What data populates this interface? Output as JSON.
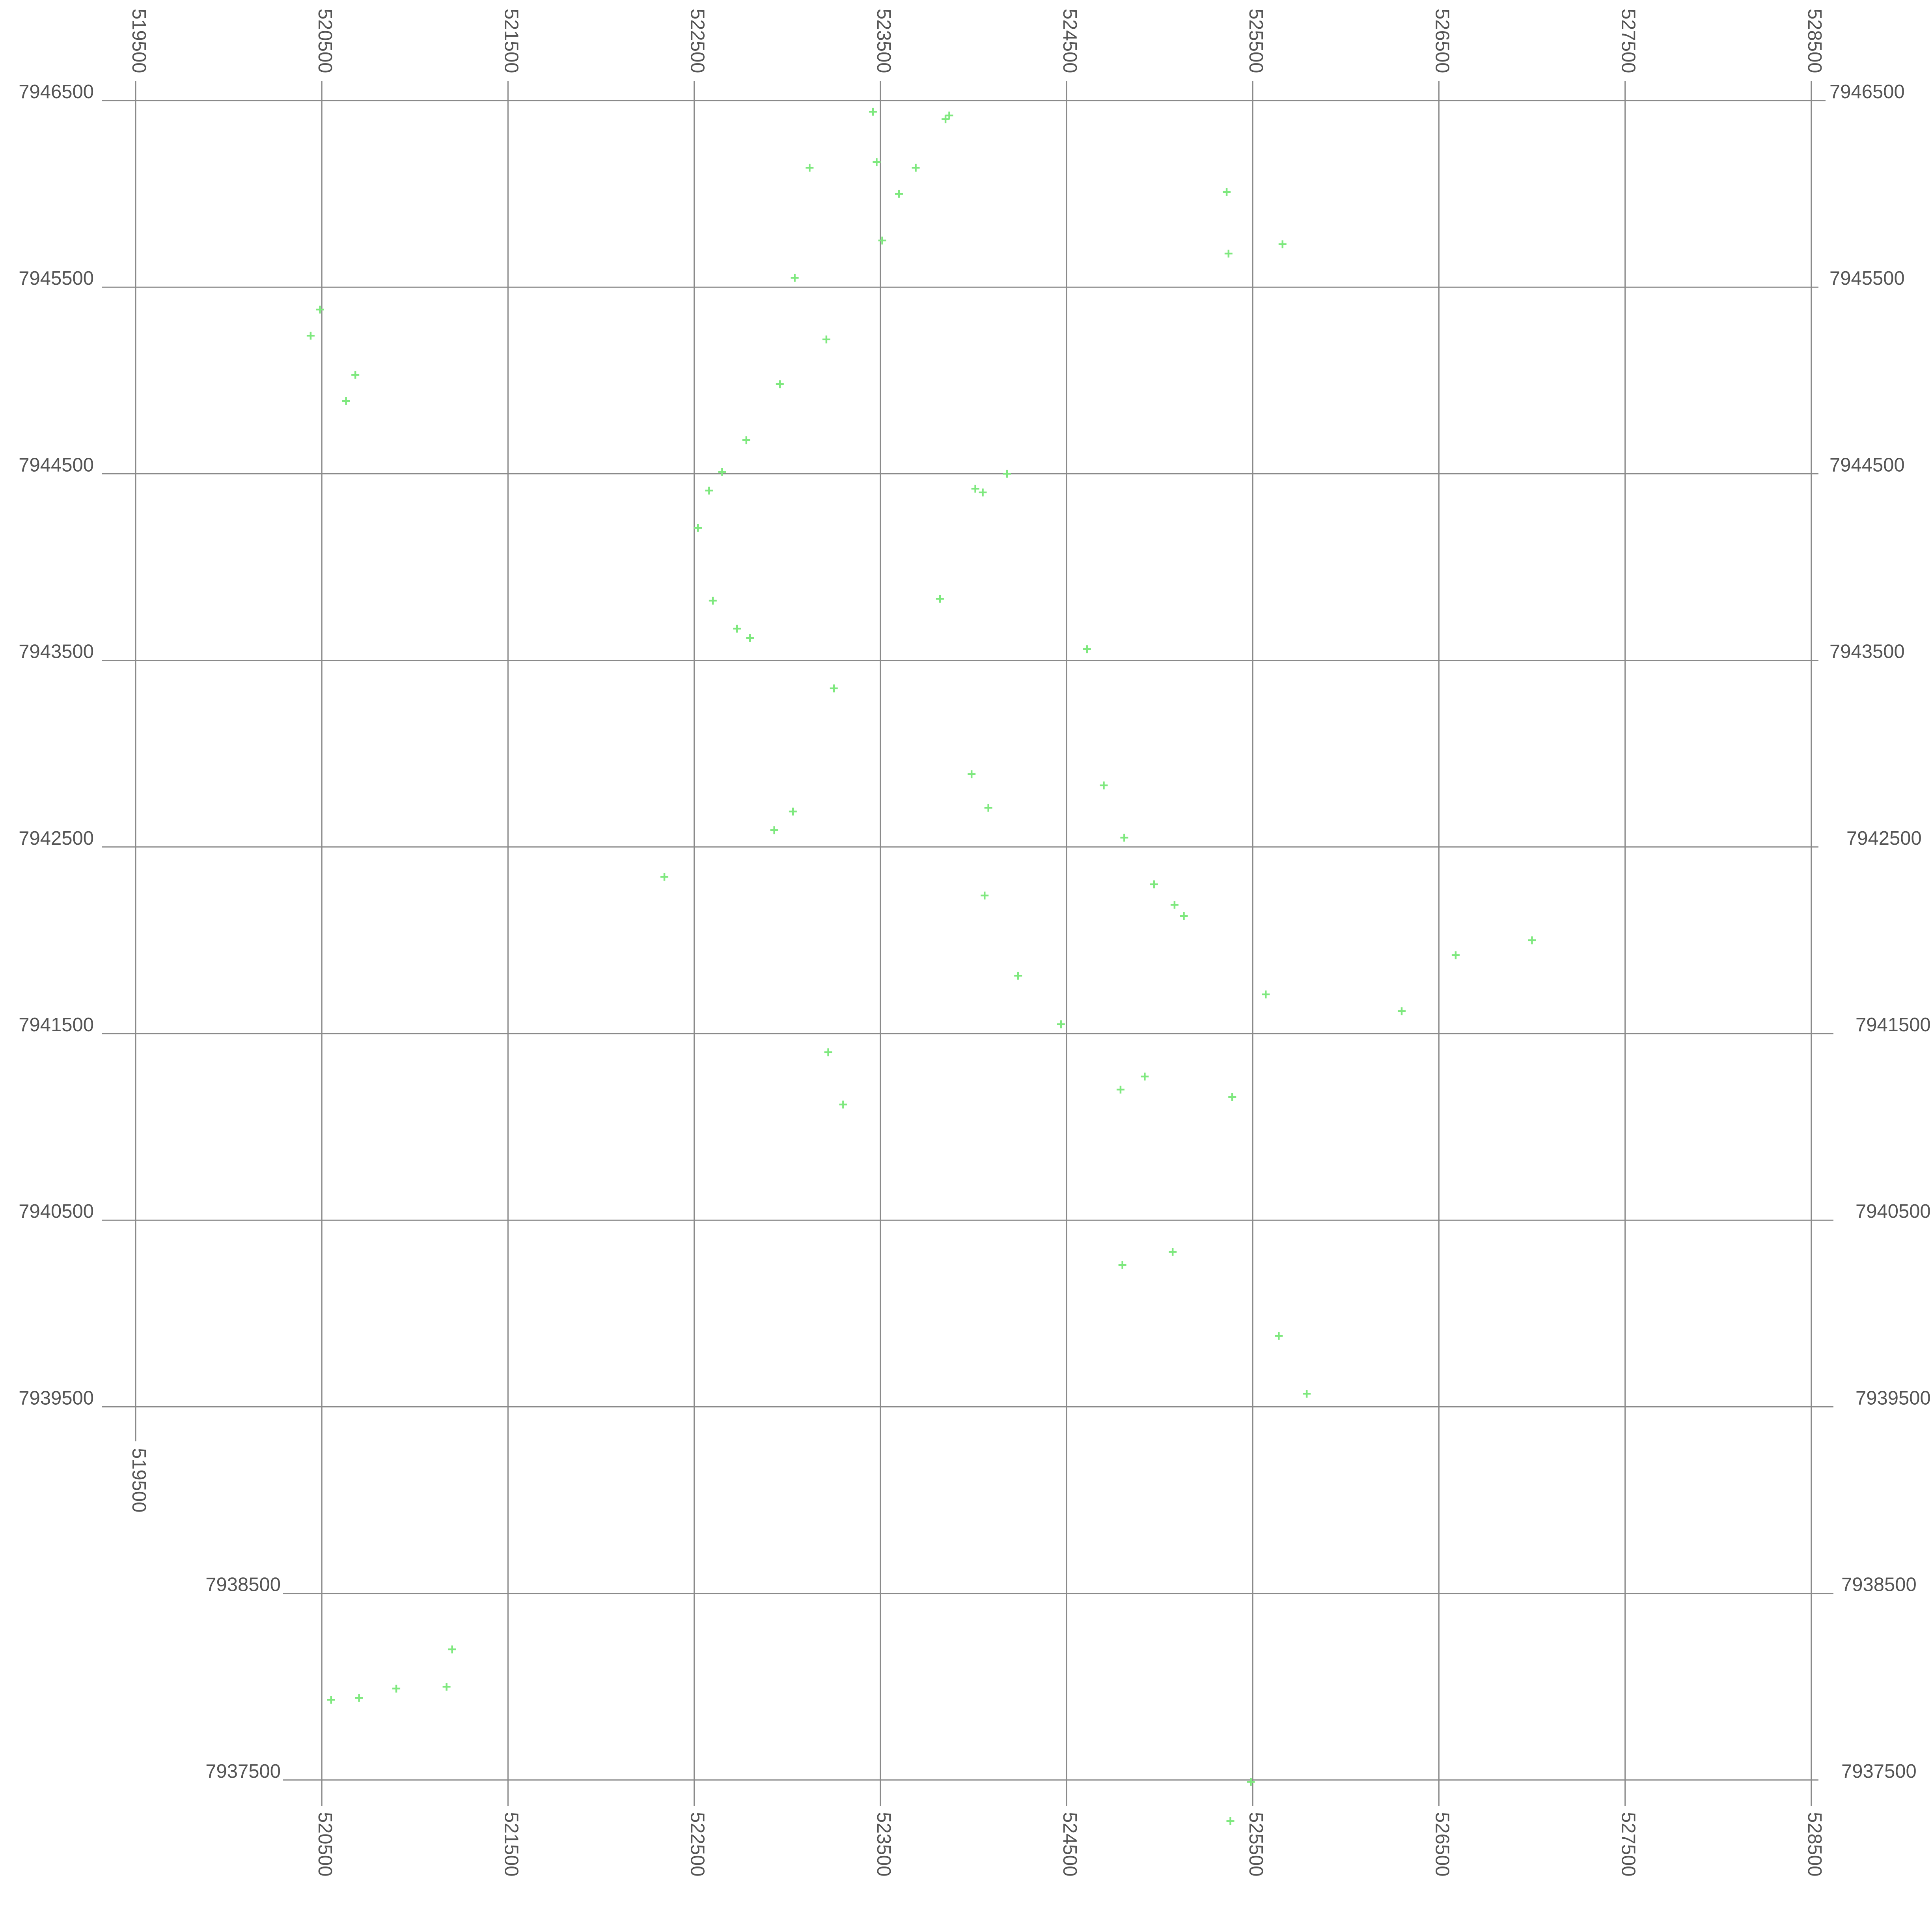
{
  "colors": {
    "background": "#ffffff",
    "grid": "#8a8a8a",
    "label": "#555555",
    "point": "#7ee87e"
  },
  "chart_data": {
    "type": "scatter",
    "title": "",
    "xlabel": "",
    "ylabel": "",
    "grid": true,
    "marker": "plus",
    "xlim": [
      519500,
      528500
    ],
    "ylim": [
      7937500,
      7946500
    ],
    "x_ticks": [
      519500,
      520500,
      521500,
      522500,
      523500,
      524500,
      525500,
      526500,
      527500,
      528500
    ],
    "y_ticks": [
      7946500,
      7945500,
      7944500,
      7943500,
      7942500,
      7941500,
      7940500,
      7939500,
      7938500,
      7937500
    ],
    "top_x_labels": [
      "519500",
      "520500",
      "521500",
      "522500",
      "523500",
      "524500",
      "525500",
      "526500",
      "527500",
      "528500"
    ],
    "bottom_x_labels": [
      "519500",
      "520500",
      "521500",
      "522500",
      "523500",
      "524500",
      "525500",
      "526500",
      "527500",
      "528500"
    ],
    "left_y_labels": [
      "7946500",
      "7945500",
      "7944500",
      "7943500",
      "7942500",
      "7941500",
      "7940500",
      "7939500",
      "7938500",
      "7937500"
    ],
    "right_y_labels": [
      "7946500",
      "7945500",
      "7944500",
      "7943500",
      "7942500",
      "7941500",
      "7940500",
      "7939500",
      "7938500",
      "7937500"
    ],
    "points": [
      [
        523460,
        7946440
      ],
      [
        523850,
        7946400
      ],
      [
        523870,
        7946420
      ],
      [
        523480,
        7946170
      ],
      [
        523690,
        7946140
      ],
      [
        523120,
        7946140
      ],
      [
        523600,
        7946000
      ],
      [
        523510,
        7945750
      ],
      [
        523040,
        7945550
      ],
      [
        525360,
        7946010
      ],
      [
        525370,
        7945680
      ],
      [
        525660,
        7945730
      ],
      [
        520490,
        7945380
      ],
      [
        520440,
        7945240
      ],
      [
        520680,
        7945030
      ],
      [
        520630,
        7944890
      ],
      [
        523210,
        7945220
      ],
      [
        522960,
        7944980
      ],
      [
        522780,
        7944680
      ],
      [
        522650,
        7944510
      ],
      [
        522580,
        7944410
      ],
      [
        522520,
        7944210
      ],
      [
        524180,
        7944500
      ],
      [
        524010,
        7944420
      ],
      [
        524050,
        7944400
      ],
      [
        522600,
        7943820
      ],
      [
        522730,
        7943670
      ],
      [
        522800,
        7943620
      ],
      [
        523820,
        7943830
      ],
      [
        524610,
        7943560
      ],
      [
        523250,
        7943350
      ],
      [
        523990,
        7942890
      ],
      [
        524700,
        7942830
      ],
      [
        524080,
        7942710
      ],
      [
        524810,
        7942550
      ],
      [
        523030,
        7942690
      ],
      [
        522930,
        7942590
      ],
      [
        522340,
        7942340
      ],
      [
        524970,
        7942300
      ],
      [
        525080,
        7942190
      ],
      [
        525130,
        7942130
      ],
      [
        524060,
        7942240
      ],
      [
        526590,
        7941920
      ],
      [
        527000,
        7942000
      ],
      [
        524240,
        7941810
      ],
      [
        525570,
        7941710
      ],
      [
        526300,
        7941620
      ],
      [
        524470,
        7941550
      ],
      [
        523220,
        7941400
      ],
      [
        523300,
        7941120
      ],
      [
        524920,
        7941270
      ],
      [
        524790,
        7941200
      ],
      [
        525390,
        7941160
      ],
      [
        525070,
        7940330
      ],
      [
        524800,
        7940260
      ],
      [
        525640,
        7939880
      ],
      [
        525790,
        7939570
      ],
      [
        521200,
        7938200
      ],
      [
        520900,
        7937990
      ],
      [
        520700,
        7937940
      ],
      [
        520550,
        7937930
      ],
      [
        521170,
        7938000
      ],
      [
        525490,
        7937490
      ],
      [
        525380,
        7937280
      ]
    ]
  }
}
